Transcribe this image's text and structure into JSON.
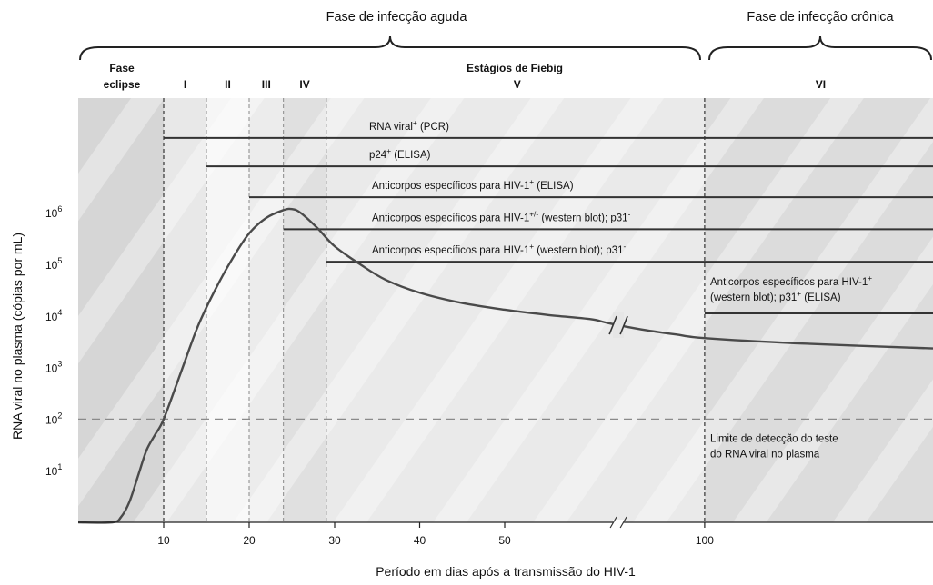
{
  "chart_data": {
    "type": "line",
    "phases": [
      {
        "label": "Fase de infecção aguda",
        "x_start": 0,
        "x_end": 100
      },
      {
        "label": "Fase de infecção crônica",
        "x_start": 100,
        "x_end": 150
      }
    ],
    "stage_group_label": "Estágios de Fiebig",
    "stages": [
      {
        "label": "Fase\neclipse",
        "x_start": 0,
        "x_end": 10,
        "shade": "#d6d6d6"
      },
      {
        "label": "I",
        "x_start": 10,
        "x_end": 15,
        "shade": "#e8e8e8"
      },
      {
        "label": "II",
        "x_start": 15,
        "x_end": 20,
        "shade": "#f6f6f6"
      },
      {
        "label": "III",
        "x_start": 20,
        "x_end": 24,
        "shade": "#ececec"
      },
      {
        "label": "IV",
        "x_start": 24,
        "x_end": 29,
        "shade": "#e0e0e0"
      },
      {
        "label": "V",
        "x_start": 29,
        "x_end": 100,
        "shade": "#eaeaea"
      },
      {
        "label": "VI",
        "x_start": 100,
        "x_end": 150,
        "shade": "#dcdcdc"
      }
    ],
    "x_ticks": [
      10,
      20,
      30,
      40,
      50,
      100
    ],
    "x_tick_labels": [
      "10",
      "20",
      "30",
      "40",
      "50",
      "100"
    ],
    "x_break": 70,
    "xlabel": "Período em dias após a transmissão do HIV-1",
    "ylabel": "RNA viral no plasma (cópias por mL)",
    "y_scale": "log",
    "y_ticks": [
      1,
      2,
      3,
      4,
      5,
      6
    ],
    "y_tick_bases": [
      "10",
      "10",
      "10",
      "10",
      "10",
      "10"
    ],
    "y_tick_exponents": [
      "1",
      "2",
      "3",
      "4",
      "5",
      "6"
    ],
    "xlim": [
      0,
      150
    ],
    "ylim_log10": [
      0,
      8.1
    ],
    "viral_load_curve": {
      "x": [
        0,
        4,
        5,
        6,
        7,
        8,
        9,
        10,
        12,
        14,
        16,
        18,
        20,
        22,
        24,
        25,
        26,
        28,
        30,
        33,
        36,
        40,
        45,
        50,
        55,
        60,
        65,
        70,
        80,
        90,
        100,
        120,
        150
      ],
      "log10_y": [
        0,
        0,
        0.1,
        0.4,
        0.9,
        1.4,
        1.7,
        2.0,
        2.9,
        3.8,
        4.5,
        5.1,
        5.6,
        5.9,
        6.05,
        6.07,
        6.0,
        5.7,
        5.35,
        5.0,
        4.7,
        4.45,
        4.25,
        4.12,
        4.02,
        3.94,
        3.88,
        3.82,
        3.72,
        3.64,
        3.57,
        3.47,
        3.37
      ],
      "break_at": 70
    },
    "detection_limit": {
      "log10_y": 2,
      "label_lines": [
        "Limite de detecção do teste",
        "do RNA viral no plasma"
      ]
    },
    "assay_markers": [
      {
        "x_start": 10,
        "log10_y": 7.45,
        "label": "RNA viral",
        "sup": "+",
        "label_rest": " (PCR)"
      },
      {
        "x_start": 15,
        "log10_y": 6.9,
        "label": "p24",
        "sup": "+",
        "label_rest": " (ELISA)"
      },
      {
        "x_start": 20,
        "log10_y": 6.3,
        "label": "Anticorpos específicos para HIV-1",
        "sup": "+",
        "label_rest": " (ELISA)"
      },
      {
        "x_start": 24,
        "log10_y": 5.68,
        "label": "Anticorpos específicos para HIV-1",
        "sup": "+/-",
        "label_rest": " (western blot); p31",
        "sup2": "-"
      },
      {
        "x_start": 29,
        "log10_y": 5.05,
        "label": "Anticorpos específicos para HIV-1",
        "sup": "+",
        "label_rest": " (western blot); p31",
        "sup2": "-"
      },
      {
        "x_start": 100,
        "log10_y": 4.05,
        "label_lines": [
          [
            "Anticorpos específicos para HIV-1",
            "+",
            ""
          ],
          [
            "(western blot); p31",
            "+",
            " (ELISA)"
          ]
        ]
      }
    ]
  }
}
